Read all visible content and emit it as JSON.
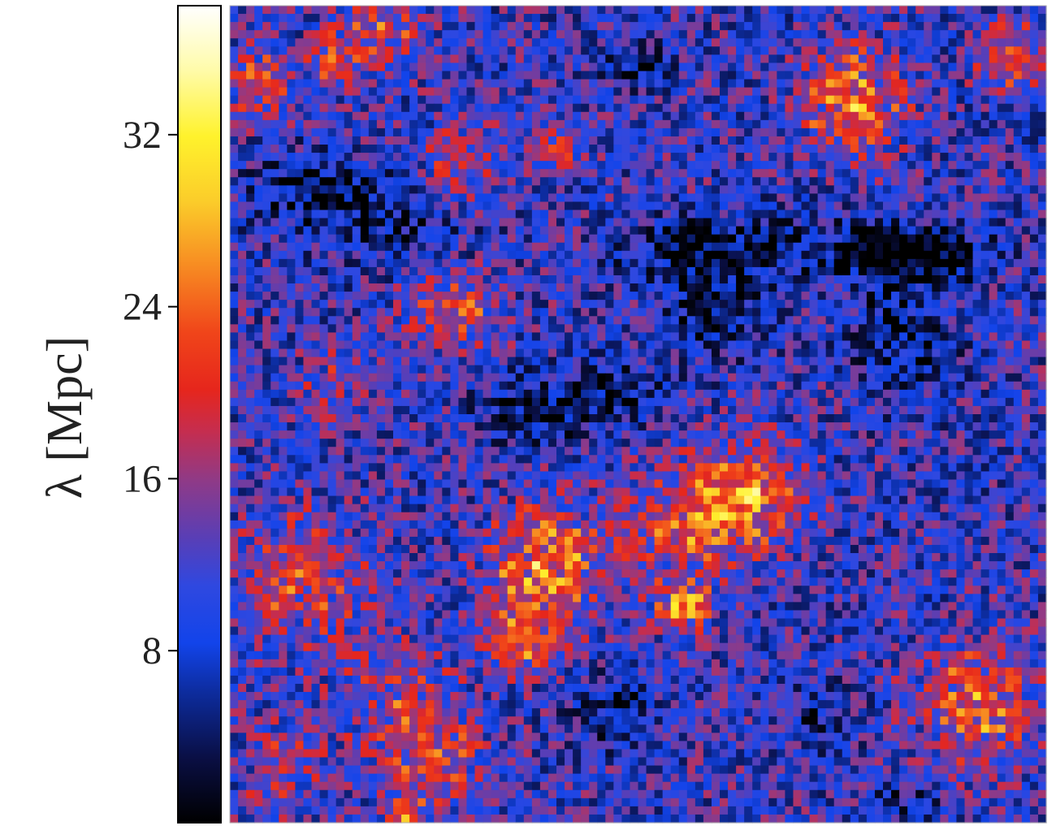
{
  "chart_data": {
    "type": "heatmap",
    "title": "",
    "xlabel": "",
    "ylabel": "",
    "grid": false,
    "colorbar": {
      "label": "λ [Mpc]",
      "range": [
        0,
        38
      ],
      "ticks": [
        {
          "value": 8,
          "label": "8"
        },
        {
          "value": 16,
          "label": "16"
        },
        {
          "value": 24,
          "label": "24"
        },
        {
          "value": 32,
          "label": "32"
        }
      ],
      "colormap": [
        {
          "at": 0.0,
          "color": "#000000"
        },
        {
          "at": 0.08,
          "color": "#0a0f45"
        },
        {
          "at": 0.16,
          "color": "#0d2c9e"
        },
        {
          "at": 0.22,
          "color": "#1244ea"
        },
        {
          "at": 0.29,
          "color": "#2f48e0"
        },
        {
          "at": 0.35,
          "color": "#5a3eb5"
        },
        {
          "at": 0.42,
          "color": "#903a86"
        },
        {
          "at": 0.48,
          "color": "#c62d4e"
        },
        {
          "at": 0.53,
          "color": "#e6261c"
        },
        {
          "at": 0.6,
          "color": "#f0451a"
        },
        {
          "at": 0.68,
          "color": "#f78a22"
        },
        {
          "at": 0.76,
          "color": "#fbcc2a"
        },
        {
          "at": 0.84,
          "color": "#fff22c"
        },
        {
          "at": 0.92,
          "color": "#fffba8"
        },
        {
          "at": 1.0,
          "color": "#ffffff"
        }
      ]
    },
    "grid_size": {
      "rows": 100,
      "cols": 100
    },
    "value_range": [
      0,
      38
    ],
    "features": {
      "base_level": 10.5,
      "noise_amplitude": 7,
      "voids": [
        {
          "col": 10,
          "row": 22,
          "rx": 8,
          "ry": 4,
          "depth": 8
        },
        {
          "col": 20,
          "row": 26,
          "rx": 10,
          "ry": 5,
          "depth": 5
        },
        {
          "col": 50,
          "row": 7,
          "rx": 5,
          "ry": 3,
          "depth": 5
        },
        {
          "col": 55,
          "row": 30,
          "rx": 8,
          "ry": 4,
          "depth": 6
        },
        {
          "col": 59,
          "row": 37,
          "rx": 6,
          "ry": 5,
          "depth": 8
        },
        {
          "col": 66,
          "row": 29,
          "rx": 12,
          "ry": 4,
          "depth": 6
        },
        {
          "col": 79,
          "row": 30,
          "rx": 5,
          "ry": 3,
          "depth": 10
        },
        {
          "col": 87,
          "row": 30,
          "rx": 6,
          "ry": 3,
          "depth": 10
        },
        {
          "col": 82,
          "row": 40,
          "rx": 6,
          "ry": 7,
          "depth": 7
        },
        {
          "col": 37,
          "row": 49,
          "rx": 7,
          "ry": 4,
          "depth": 8
        },
        {
          "col": 47,
          "row": 47,
          "rx": 6,
          "ry": 3,
          "depth": 8
        },
        {
          "col": 47,
          "row": 86,
          "rx": 5,
          "ry": 4,
          "depth": 7
        },
        {
          "col": 72,
          "row": 87,
          "rx": 4,
          "ry": 4,
          "depth": 5
        },
        {
          "col": 82,
          "row": 97,
          "rx": 5,
          "ry": 3,
          "depth": 4
        }
      ],
      "clusters": [
        {
          "col": 18,
          "row": 3,
          "r": 5,
          "amp": 9
        },
        {
          "col": 12,
          "row": 6,
          "r": 3,
          "amp": 9
        },
        {
          "col": 3,
          "row": 9,
          "r": 4,
          "amp": 10
        },
        {
          "col": 28,
          "row": 19,
          "r": 5,
          "amp": 8
        },
        {
          "col": 40,
          "row": 17,
          "r": 3,
          "amp": 7
        },
        {
          "col": 76,
          "row": 11,
          "r": 6,
          "amp": 14
        },
        {
          "col": 95,
          "row": 6,
          "r": 4,
          "amp": 10
        },
        {
          "col": 27,
          "row": 37,
          "r": 5,
          "amp": 9
        },
        {
          "col": 12,
          "row": 46,
          "r": 4,
          "amp": 5
        },
        {
          "col": 63,
          "row": 60,
          "r": 6,
          "amp": 15
        },
        {
          "col": 54,
          "row": 63,
          "r": 7,
          "amp": 9
        },
        {
          "col": 38,
          "row": 68,
          "r": 7,
          "amp": 13
        },
        {
          "col": 55,
          "row": 73,
          "r": 3,
          "amp": 14
        },
        {
          "col": 35,
          "row": 77,
          "r": 4,
          "amp": 10
        },
        {
          "col": 8,
          "row": 70,
          "r": 8,
          "amp": 8
        },
        {
          "col": 20,
          "row": 84,
          "r": 7,
          "amp": 7
        },
        {
          "col": 25,
          "row": 92,
          "r": 6,
          "amp": 8
        },
        {
          "col": 91,
          "row": 85,
          "r": 7,
          "amp": 11
        },
        {
          "col": 6,
          "row": 93,
          "r": 5,
          "amp": 6
        },
        {
          "col": 21,
          "row": 99,
          "r": 2,
          "amp": 16
        }
      ]
    }
  }
}
